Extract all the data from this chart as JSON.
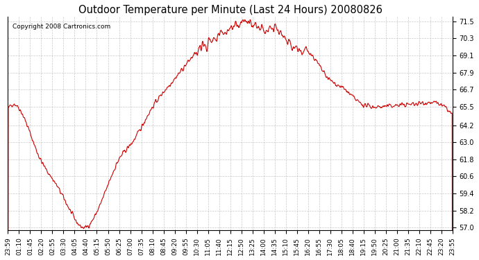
{
  "title": "Outdoor Temperature per Minute (Last 24 Hours) 20080826",
  "copyright_text": "Copyright 2008 Cartronics.com",
  "line_color": "#cc0000",
  "background_color": "#ffffff",
  "plot_background": "#ffffff",
  "grid_color": "#bbbbbb",
  "yticks": [
    57.0,
    58.2,
    59.4,
    60.6,
    61.8,
    63.0,
    64.2,
    65.5,
    66.7,
    67.9,
    69.1,
    70.3,
    71.5
  ],
  "ylim": [
    56.8,
    71.8
  ],
  "xtick_labels": [
    "23:59",
    "01:10",
    "01:45",
    "02:20",
    "02:55",
    "03:30",
    "04:05",
    "04:40",
    "05:15",
    "05:50",
    "06:25",
    "07:00",
    "07:35",
    "08:10",
    "08:45",
    "09:20",
    "09:55",
    "10:30",
    "11:05",
    "11:40",
    "12:15",
    "12:50",
    "13:25",
    "14:00",
    "14:35",
    "15:10",
    "15:45",
    "16:20",
    "16:55",
    "17:30",
    "18:05",
    "18:40",
    "19:15",
    "19:50",
    "20:25",
    "21:00",
    "21:35",
    "22:10",
    "22:45",
    "23:20",
    "23:55"
  ],
  "num_points": 1440,
  "keypoints_x": [
    0.0,
    0.038,
    0.07,
    0.105,
    0.135,
    0.171,
    0.2,
    0.219,
    0.25,
    0.28,
    0.32,
    0.376,
    0.43,
    0.49,
    0.542,
    0.57,
    0.6,
    0.64,
    0.681,
    0.72,
    0.754,
    0.79,
    0.82,
    0.876,
    0.917,
    0.95,
    1.0
  ],
  "keypoints_y": [
    65.3,
    64.6,
    62.0,
    60.2,
    58.5,
    57.0,
    58.1,
    59.5,
    61.8,
    63.0,
    65.2,
    67.5,
    69.5,
    70.8,
    71.4,
    71.0,
    70.8,
    69.8,
    69.2,
    67.5,
    66.8,
    65.8,
    65.5,
    65.6,
    65.7,
    65.8,
    64.9
  ]
}
